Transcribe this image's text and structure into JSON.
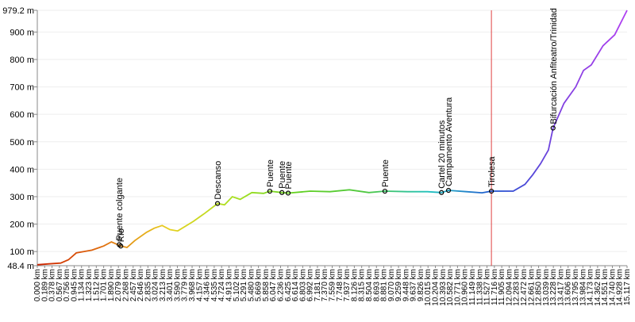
{
  "chart_data": {
    "type": "line",
    "ylim": [
      48.4,
      979.2
    ],
    "yticks": [
      {
        "value": 48.4,
        "label": "48.4 m"
      },
      {
        "value": 100,
        "label": "100 m"
      },
      {
        "value": 200,
        "label": "200 m"
      },
      {
        "value": 300,
        "label": "300 m"
      },
      {
        "value": 400,
        "label": "400 m"
      },
      {
        "value": 500,
        "label": "500 m"
      },
      {
        "value": 600,
        "label": "600 m"
      },
      {
        "value": 700,
        "label": "700 m"
      },
      {
        "value": 800,
        "label": "800 m"
      },
      {
        "value": 900,
        "label": "900 m"
      },
      {
        "value": 979.2,
        "label": "979.2 m"
      }
    ],
    "xlim": [
      0,
      15.117
    ],
    "xticks": [
      {
        "value": 0,
        "label": "0.000 km"
      },
      {
        "value": 0.189,
        "label": "0.189 km"
      },
      {
        "value": 0.378,
        "label": "0.378 km"
      },
      {
        "value": 0.567,
        "label": "0.567 km"
      },
      {
        "value": 0.756,
        "label": "0.756 km"
      },
      {
        "value": 0.945,
        "label": "0.945 km"
      },
      {
        "value": 1.134,
        "label": "1.134 km"
      },
      {
        "value": 1.323,
        "label": "1.323 km"
      },
      {
        "value": 1.512,
        "label": "1.512 km"
      },
      {
        "value": 1.701,
        "label": "1.701 km"
      },
      {
        "value": 1.89,
        "label": "1.890 km"
      },
      {
        "value": 2.079,
        "label": "2.079 km"
      },
      {
        "value": 2.268,
        "label": "2.268 km"
      },
      {
        "value": 2.457,
        "label": "2.457 km"
      },
      {
        "value": 2.646,
        "label": "2.646 km"
      },
      {
        "value": 2.835,
        "label": "2.835 km"
      },
      {
        "value": 3.024,
        "label": "3.024 km"
      },
      {
        "value": 3.213,
        "label": "3.213 km"
      },
      {
        "value": 3.401,
        "label": "3.401 km"
      },
      {
        "value": 3.59,
        "label": "3.590 km"
      },
      {
        "value": 3.779,
        "label": "3.779 km"
      },
      {
        "value": 3.968,
        "label": "3.968 km"
      },
      {
        "value": 4.157,
        "label": "4.157 km"
      },
      {
        "value": 4.346,
        "label": "4.346 km"
      },
      {
        "value": 4.535,
        "label": "4.535 km"
      },
      {
        "value": 4.724,
        "label": "4.724 km"
      },
      {
        "value": 4.913,
        "label": "4.913 km"
      },
      {
        "value": 5.102,
        "label": "5.102 km"
      },
      {
        "value": 5.291,
        "label": "5.291 km"
      },
      {
        "value": 5.48,
        "label": "5.480 km"
      },
      {
        "value": 5.669,
        "label": "5.669 km"
      },
      {
        "value": 5.858,
        "label": "5.858 km"
      },
      {
        "value": 6.047,
        "label": "6.047 km"
      },
      {
        "value": 6.236,
        "label": "6.236 km"
      },
      {
        "value": 6.425,
        "label": "6.425 km"
      },
      {
        "value": 6.614,
        "label": "6.614 km"
      },
      {
        "value": 6.803,
        "label": "6.803 km"
      },
      {
        "value": 6.992,
        "label": "6.992 km"
      },
      {
        "value": 7.181,
        "label": "7.181 km"
      },
      {
        "value": 7.37,
        "label": "7.370 km"
      },
      {
        "value": 7.559,
        "label": "7.559 km"
      },
      {
        "value": 7.748,
        "label": "7.748 km"
      },
      {
        "value": 7.937,
        "label": "7.937 km"
      },
      {
        "value": 8.126,
        "label": "8.126 km"
      },
      {
        "value": 8.315,
        "label": "8.315 km"
      },
      {
        "value": 8.504,
        "label": "8.504 km"
      },
      {
        "value": 8.693,
        "label": "8.693 km"
      },
      {
        "value": 8.881,
        "label": "8.881 km"
      },
      {
        "value": 9.07,
        "label": "9.070 km"
      },
      {
        "value": 9.259,
        "label": "9.259 km"
      },
      {
        "value": 9.448,
        "label": "9.448 km"
      },
      {
        "value": 9.637,
        "label": "9.637 km"
      },
      {
        "value": 9.826,
        "label": "9.826 km"
      },
      {
        "value": 10.015,
        "label": "10.015 km"
      },
      {
        "value": 10.204,
        "label": "10.204 km"
      },
      {
        "value": 10.393,
        "label": "10.393 km"
      },
      {
        "value": 10.582,
        "label": "10.582 km"
      },
      {
        "value": 10.771,
        "label": "10.771 km"
      },
      {
        "value": 10.96,
        "label": "10.960 km"
      },
      {
        "value": 11.149,
        "label": "11.149 km"
      },
      {
        "value": 11.338,
        "label": "11.338 km"
      },
      {
        "value": 11.527,
        "label": "11.527 km"
      },
      {
        "value": 11.716,
        "label": "11.716 km"
      },
      {
        "value": 11.905,
        "label": "11.905 km"
      },
      {
        "value": 12.094,
        "label": "12.094 km"
      },
      {
        "value": 12.283,
        "label": "12.283 km"
      },
      {
        "value": 12.472,
        "label": "12.472 km"
      },
      {
        "value": 12.661,
        "label": "12.661 km"
      },
      {
        "value": 12.85,
        "label": "12.850 km"
      },
      {
        "value": 13.039,
        "label": "13.039 km"
      },
      {
        "value": 13.228,
        "label": "13.228 km"
      },
      {
        "value": 13.417,
        "label": "13.417 km"
      },
      {
        "value": 13.606,
        "label": "13.606 km"
      },
      {
        "value": 13.795,
        "label": "13.795 km"
      },
      {
        "value": 13.984,
        "label": "13.984 km"
      },
      {
        "value": 14.173,
        "label": "14.173 km"
      },
      {
        "value": 14.362,
        "label": "14.362 km"
      },
      {
        "value": 14.551,
        "label": "14.551 km"
      },
      {
        "value": 14.74,
        "label": "14.740 km"
      },
      {
        "value": 14.928,
        "label": "14.928 km"
      },
      {
        "value": 15.117,
        "label": "15.117 km"
      }
    ],
    "x": [
      0,
      0.3,
      0.6,
      0.8,
      1.0,
      1.2,
      1.4,
      1.7,
      1.9,
      2.14,
      2.3,
      2.5,
      2.8,
      3.0,
      3.2,
      3.4,
      3.6,
      4.0,
      4.3,
      4.62,
      4.8,
      5.0,
      5.2,
      5.5,
      5.8,
      5.96,
      6.27,
      6.43,
      7.0,
      7.5,
      8.0,
      8.5,
      8.91,
      9.5,
      10.0,
      10.36,
      10.54,
      11.0,
      11.4,
      11.64,
      12.2,
      12.5,
      12.7,
      12.9,
      13.1,
      13.22,
      13.5,
      13.8,
      14.0,
      14.2,
      14.5,
      14.8,
      15.117
    ],
    "series": [
      {
        "values": [
          52,
          55,
          58,
          70,
          95,
          100,
          105,
          120,
          135,
          120,
          115,
          140,
          170,
          185,
          195,
          180,
          175,
          210,
          240,
          275,
          270,
          300,
          290,
          315,
          312,
          320,
          315,
          313,
          320,
          318,
          325,
          315,
          320,
          318,
          318,
          315,
          323,
          318,
          314,
          320,
          320,
          345,
          380,
          420,
          470,
          550,
          640,
          700,
          760,
          780,
          850,
          890,
          979.2
        ]
      }
    ],
    "gradient_colors": [
      "#cc2200",
      "#e07010",
      "#e8d020",
      "#a8e020",
      "#60d020",
      "#50c840",
      "#20c0c0",
      "#2050d0",
      "#8040e0",
      "#b040f0"
    ],
    "cursor_x": 11.64,
    "cursor_color": "#e04040",
    "waypoints": [
      {
        "name": "Río",
        "x": 2.14,
        "y": 120
      },
      {
        "name": "Puente colgante",
        "x": 2.1,
        "y": 125
      },
      {
        "name": "Descanso",
        "x": 4.62,
        "y": 275
      },
      {
        "name": "Puente",
        "x": 5.96,
        "y": 320
      },
      {
        "name": "Puente",
        "x": 6.27,
        "y": 315
      },
      {
        "name": "Puente",
        "x": 6.43,
        "y": 313
      },
      {
        "name": "Puente",
        "x": 8.91,
        "y": 320
      },
      {
        "name": "Cartel 20 minutos",
        "x": 10.36,
        "y": 315
      },
      {
        "name": "Campamento Aventura",
        "x": 10.54,
        "y": 323
      },
      {
        "name": "Tirolesa",
        "x": 11.64,
        "y": 320
      },
      {
        "name": "Bifurcación Anfiteatro/Trinidad",
        "x": 13.22,
        "y": 550
      }
    ]
  }
}
